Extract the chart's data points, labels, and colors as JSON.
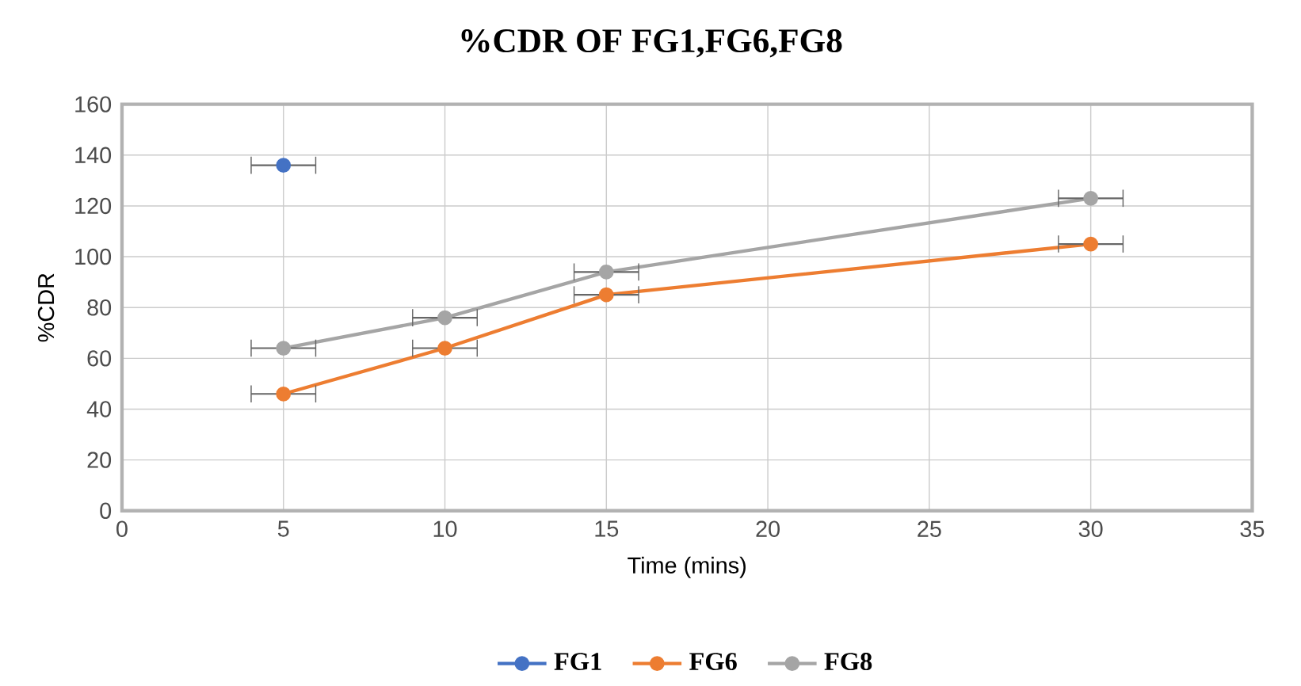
{
  "chart_data": {
    "type": "line",
    "title": "%CDR OF FG1,FG6,FG8",
    "xlabel": "Time (mins)",
    "ylabel": "%CDR",
    "x": [
      5,
      10,
      15,
      30
    ],
    "series": [
      {
        "name": "FG1",
        "color": "#4472c4",
        "values": [
          136,
          null,
          null,
          null
        ],
        "xerrors": [
          1,
          null,
          null,
          null
        ]
      },
      {
        "name": "FG6",
        "color": "#ed7d31",
        "values": [
          46,
          64,
          85,
          105
        ],
        "xerrors": [
          1,
          1,
          1,
          1
        ]
      },
      {
        "name": "FG8",
        "color": "#a5a5a5",
        "values": [
          64,
          76,
          94,
          123
        ],
        "xerrors": [
          1,
          1,
          1,
          1
        ]
      }
    ],
    "xlim": [
      0,
      35
    ],
    "xticks": [
      0,
      5,
      10,
      15,
      20,
      25,
      30,
      35
    ],
    "ylim": [
      0,
      160
    ],
    "yticks": [
      0,
      20,
      40,
      60,
      80,
      100,
      120,
      140,
      160
    ],
    "grid": true,
    "legend": "bottom",
    "marker": "circle",
    "line_style": "solid"
  }
}
